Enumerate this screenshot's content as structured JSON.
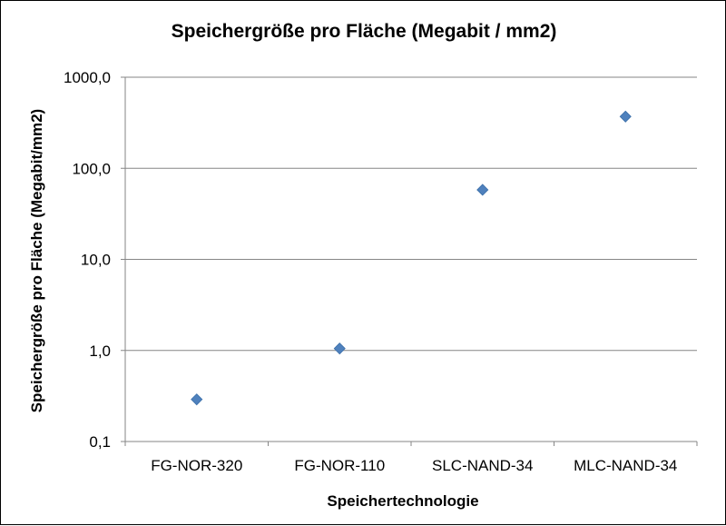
{
  "chart_data": {
    "type": "scatter",
    "title": "Speichergröße pro Fläche (Megabit / mm2)",
    "xlabel": "Speichertechnologie",
    "ylabel": "Speichergröße pro Fläche (Megabit/mm2)",
    "y_scale": "log",
    "ylim": [
      0.1,
      1000
    ],
    "grid": "horizontal major gridlines",
    "y_ticks": [
      {
        "value": 0.1,
        "label": "0,1"
      },
      {
        "value": 1,
        "label": "1,0"
      },
      {
        "value": 10,
        "label": "10,0"
      },
      {
        "value": 100,
        "label": "100,0"
      },
      {
        "value": 1000,
        "label": "1000,0"
      }
    ],
    "categories": [
      "FG-NOR-320",
      "FG-NOR-110",
      "SLC-NAND-34",
      "MLC-NAND-34"
    ],
    "values": [
      0.29,
      1.05,
      58,
      370
    ],
    "marker": "diamond",
    "marker_color": "#4F81BD"
  }
}
